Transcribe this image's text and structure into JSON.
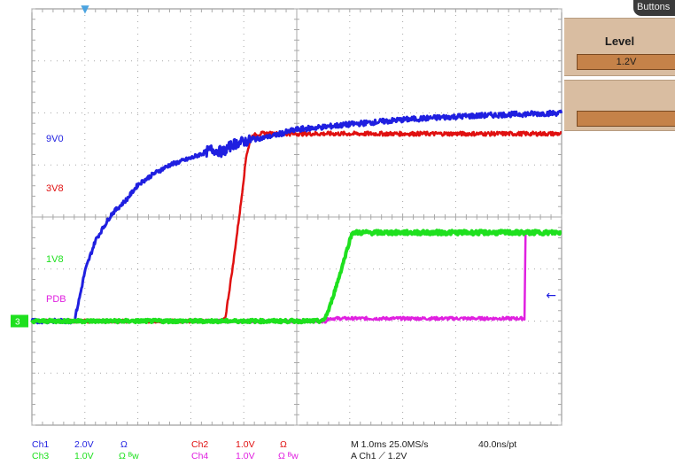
{
  "chart_data": {
    "type": "line",
    "xlim": [
      0,
      10
    ],
    "ylim": [
      -4,
      4
    ],
    "grid": true,
    "x_divisions": 10,
    "y_divisions": 8,
    "series": [
      {
        "name": "9V0",
        "channel": "Ch1",
        "color": "#1f1fe0",
        "x": [
          0,
          0.8,
          0.9,
          1.0,
          1.2,
          1.5,
          1.8,
          2.0,
          2.3,
          2.6,
          3.0,
          3.4,
          3.6,
          3.8,
          4.0,
          4.5,
          5.0,
          6.0,
          7.0,
          8.0,
          9.0,
          10.0
        ],
        "y": [
          -2.0,
          -2.0,
          -1.55,
          -1.05,
          -0.45,
          0.05,
          0.35,
          0.62,
          0.83,
          1.0,
          1.13,
          1.3,
          1.25,
          1.4,
          1.45,
          1.55,
          1.68,
          1.78,
          1.87,
          1.93,
          1.97,
          2.0
        ]
      },
      {
        "name": "3V8",
        "channel": "Ch2",
        "color": "#e01010",
        "x": [
          0,
          3.6,
          3.65,
          3.8,
          3.95,
          4.05,
          4.15,
          4.3,
          10.0
        ],
        "y": [
          -2.0,
          -2.0,
          -1.95,
          -0.9,
          0.3,
          1.2,
          1.55,
          1.6,
          1.6
        ]
      },
      {
        "name": "1V8",
        "channel": "Ch3",
        "color": "#1ee01e",
        "x": [
          0,
          5.5,
          5.6,
          5.8,
          6.0,
          6.05,
          6.2,
          10.0
        ],
        "y": [
          -2.0,
          -2.0,
          -1.8,
          -1.15,
          -0.45,
          -0.3,
          -0.3,
          -0.3
        ]
      },
      {
        "name": "PDB",
        "channel": "Ch4",
        "color": "#e020e0",
        "x": [
          0,
          5.55,
          5.6,
          9.3,
          9.31,
          9.32
        ],
        "y": [
          -2.0,
          -2.0,
          -1.95,
          -1.95,
          -1.0,
          -0.3
        ]
      }
    ],
    "labels": [
      {
        "text": "9V0",
        "color": "#1f1fe0"
      },
      {
        "text": "3V8",
        "color": "#e01010"
      },
      {
        "text": "1V8",
        "color": "#1ee01e"
      },
      {
        "text": "PDB",
        "color": "#e020e0"
      }
    ],
    "markers": {
      "ground_tag": "3",
      "trigger_arrow": "←",
      "top_marker": "▼"
    },
    "readout": {
      "row1": [
        {
          "text": "Ch1",
          "color": "#1f1fe0"
        },
        {
          "text": "2.0V",
          "color": "#1f1fe0"
        },
        {
          "text": "Ω",
          "color": "#1f1fe0"
        },
        {
          "text": "Ch2",
          "color": "#e01010"
        },
        {
          "text": "1.0V",
          "color": "#e01010"
        },
        {
          "text": "Ω",
          "color": "#e01010"
        },
        {
          "text": "M 1.0ms 25.0MS/s",
          "color": "#202020"
        },
        {
          "text": "40.0ns/pt",
          "color": "#202020"
        }
      ],
      "row2": [
        {
          "text": "Ch3",
          "color": "#1ee01e"
        },
        {
          "text": "1.0V",
          "color": "#1ee01e"
        },
        {
          "text": "Ω ᴮw",
          "color": "#1ee01e"
        },
        {
          "text": "Ch4",
          "color": "#e020e0"
        },
        {
          "text": "1.0V",
          "color": "#e020e0"
        },
        {
          "text": "Ω ᴮw",
          "color": "#e020e0"
        },
        {
          "text": "A Ch1 ⟋ 1.2V",
          "color": "#202020"
        }
      ]
    }
  },
  "panel": {
    "tab_label": "Buttons",
    "level_title": "Level",
    "level_value": "1.2V"
  },
  "colors": {
    "grid": "#a8a8a8",
    "frame": "#8a8a8a",
    "panel_bg": "#d9bda1",
    "field_bg": "#c58249"
  }
}
